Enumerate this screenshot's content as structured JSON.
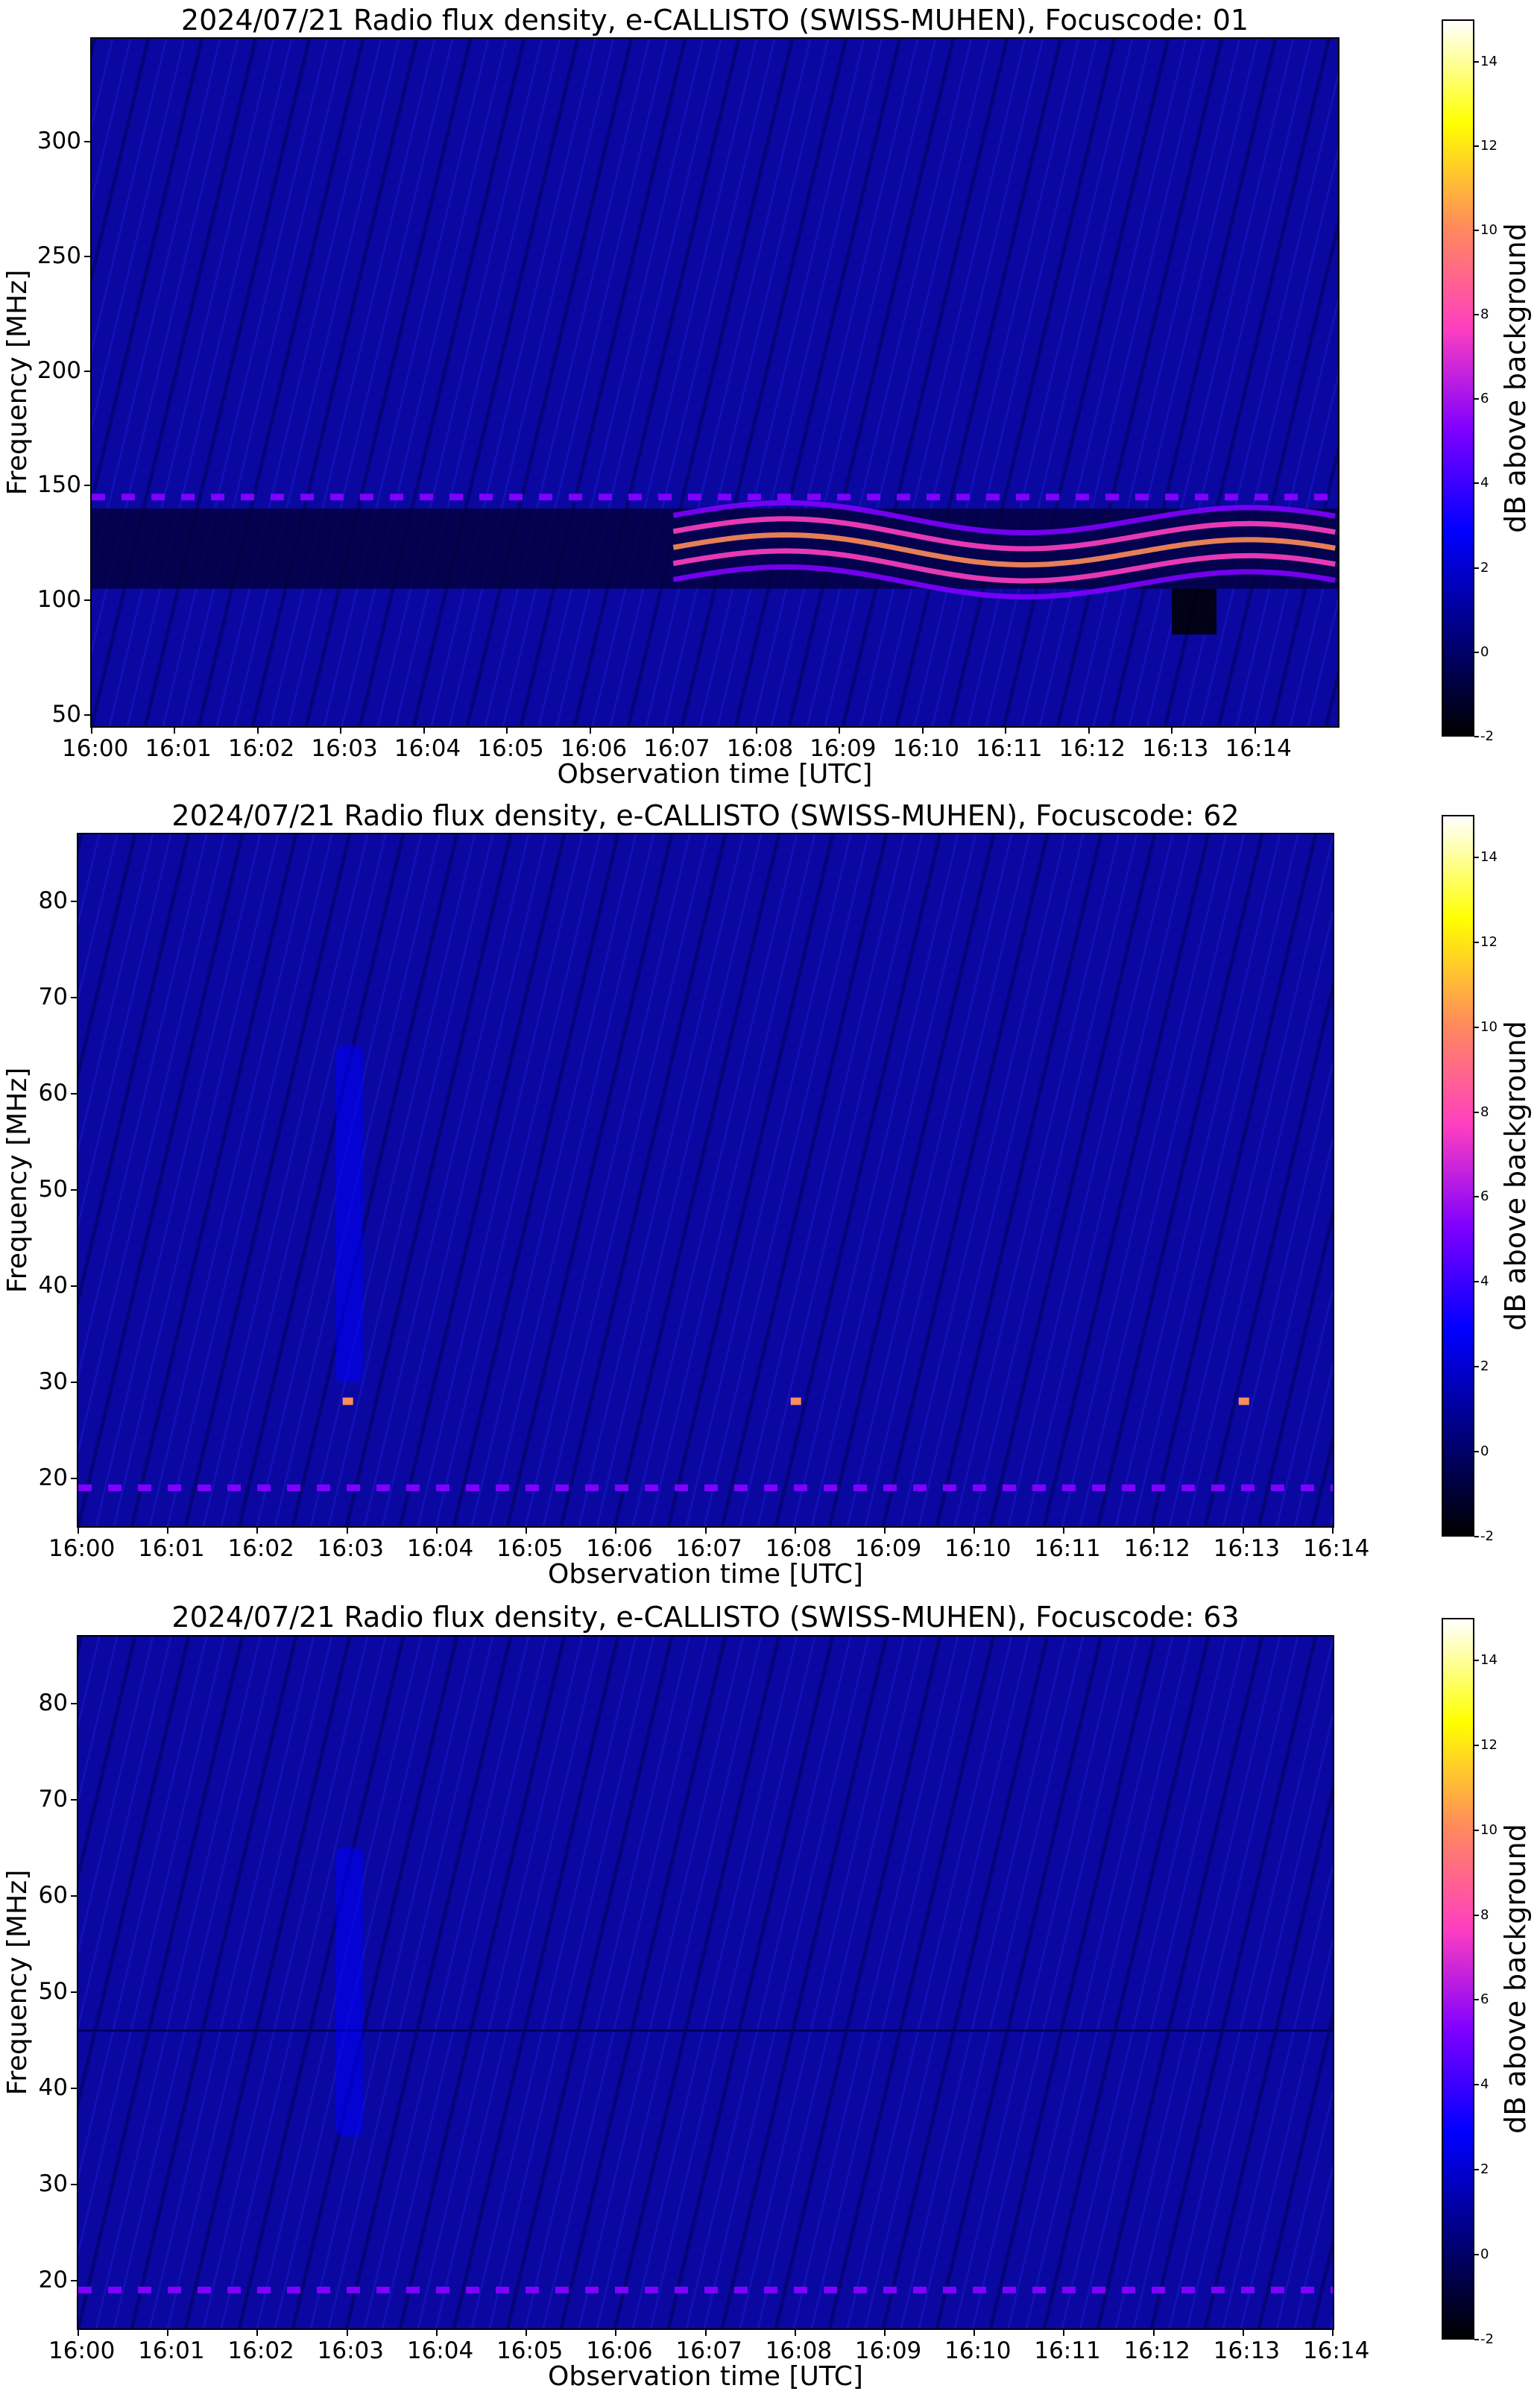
{
  "colormap": {
    "name": "gnuplot2",
    "stops": [
      "#000000",
      "#00007f",
      "#0000ff",
      "#7f00ff",
      "#ff3fbf",
      "#ff8c5a",
      "#ffff00",
      "#ffffff"
    ]
  },
  "chart_data": [
    {
      "type": "heatmap",
      "title": "2024/07/21  Radio flux density, e-CALLISTO (SWISS-MUHEN), Focuscode: 01",
      "xlabel": "Observation time [UTC]",
      "ylabel": "Frequency [MHz]",
      "x_ticks": [
        "16:00",
        "16:01",
        "16:02",
        "16:03",
        "16:04",
        "16:05",
        "16:06",
        "16:07",
        "16:08",
        "16:09",
        "16:10",
        "16:11",
        "16:12",
        "16:13",
        "16:14"
      ],
      "xlim": [
        "16:00",
        "16:15"
      ],
      "y_ticks": [
        50,
        100,
        150,
        200,
        250,
        300
      ],
      "ylim": [
        45,
        345
      ],
      "colorbar": {
        "label": "dB above background",
        "ticks": [
          -2,
          0,
          2,
          4,
          6,
          8,
          10,
          12,
          14
        ],
        "range": [
          -2,
          15
        ]
      },
      "features": {
        "bright_band_MHz": [
          105,
          140
        ],
        "bright_band_onset": "16:07",
        "dashed_line_MHz": 145,
        "dark_patch": {
          "time": "16:13",
          "MHz": [
            85,
            105
          ]
        }
      }
    },
    {
      "type": "heatmap",
      "title": "2024/07/21  Radio flux density, e-CALLISTO (SWISS-MUHEN), Focuscode: 62",
      "xlabel": "Observation time [UTC]",
      "ylabel": "Frequency [MHz]",
      "x_ticks": [
        "16:00",
        "16:01",
        "16:02",
        "16:03",
        "16:04",
        "16:05",
        "16:06",
        "16:07",
        "16:08",
        "16:09",
        "16:10",
        "16:11",
        "16:12",
        "16:13",
        "16:14"
      ],
      "xlim": [
        "16:00",
        "16:14"
      ],
      "y_ticks": [
        20,
        30,
        40,
        50,
        60,
        70,
        80
      ],
      "ylim": [
        15,
        87
      ],
      "colorbar": {
        "label": "dB above background",
        "ticks": [
          -2,
          0,
          2,
          4,
          6,
          8,
          10,
          12,
          14
        ],
        "range": [
          -2,
          15
        ]
      },
      "features": {
        "dashed_line_MHz": 19,
        "vertical_burst": {
          "time": "16:03",
          "MHz": [
            30,
            65
          ]
        },
        "bright_dots": [
          {
            "time": "16:03",
            "MHz": 28
          },
          {
            "time": "16:08",
            "MHz": 28
          },
          {
            "time": "16:13",
            "MHz": 28
          }
        ]
      }
    },
    {
      "type": "heatmap",
      "title": "2024/07/21  Radio flux density, e-CALLISTO (SWISS-MUHEN), Focuscode: 63",
      "xlabel": "Observation time [UTC]",
      "ylabel": "Frequency [MHz]",
      "x_ticks": [
        "16:00",
        "16:01",
        "16:02",
        "16:03",
        "16:04",
        "16:05",
        "16:06",
        "16:07",
        "16:08",
        "16:09",
        "16:10",
        "16:11",
        "16:12",
        "16:13",
        "16:14"
      ],
      "xlim": [
        "16:00",
        "16:14"
      ],
      "y_ticks": [
        20,
        30,
        40,
        50,
        60,
        70,
        80
      ],
      "ylim": [
        15,
        87
      ],
      "colorbar": {
        "label": "dB above background",
        "ticks": [
          -2,
          0,
          2,
          4,
          6,
          8,
          10,
          12,
          14
        ],
        "range": [
          -2,
          15
        ]
      },
      "features": {
        "dashed_line_MHz": 19,
        "vertical_burst": {
          "time": "16:03",
          "MHz": [
            35,
            65
          ]
        },
        "horizontal_line_MHz": 46
      }
    }
  ]
}
